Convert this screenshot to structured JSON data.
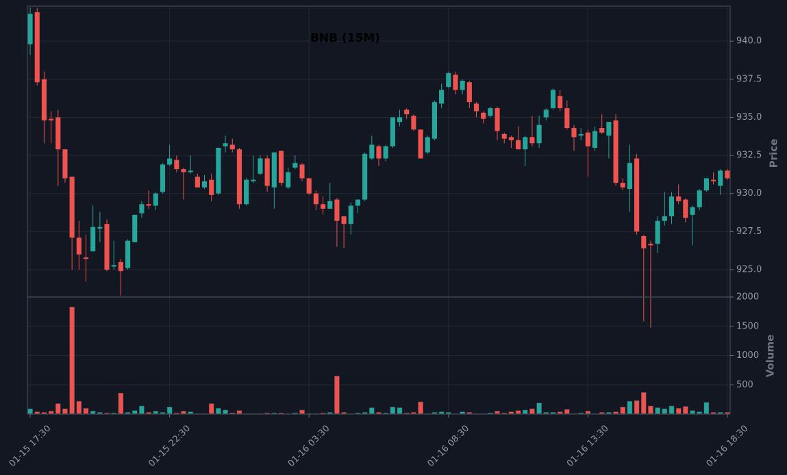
{
  "chart_data": {
    "type": "candlestick",
    "title": "BNB (15M)",
    "ylabel": "Price",
    "volume_label": "Volume",
    "up_color": "#26a69a",
    "down_color": "#ef5350",
    "grid": true,
    "xlim": [
      -0.4,
      100.4
    ],
    "xticks": [
      {
        "value": 0,
        "label": "01-15 17:30"
      },
      {
        "value": 20,
        "label": "01-15 22:30"
      },
      {
        "value": 40,
        "label": "01-16 03:30"
      },
      {
        "value": 60,
        "label": "01-16 08:30"
      },
      {
        "value": 80,
        "label": "01-16 13:30"
      },
      {
        "value": 100,
        "label": "01-16 18:30"
      }
    ],
    "ylim": [
      923.2,
      942.3
    ],
    "yticks": [
      {
        "value": 925,
        "label": "925.0"
      },
      927.5,
      {
        "value": 930,
        "label": "930.0"
      },
      932.5,
      {
        "value": 935,
        "label": "935.0"
      },
      937.5,
      {
        "value": 940,
        "label": "940.0"
      }
    ],
    "volume_ylim": [
      0,
      2000
    ],
    "volume_yticks": [
      500,
      1000,
      1500,
      2000
    ],
    "open": [
      939.8,
      941.9,
      937.5,
      934.9,
      935.0,
      932.9,
      931.1,
      927.1,
      925.8,
      926.2,
      927.7,
      928.0,
      925.2,
      925.5,
      925.1,
      926.8,
      928.7,
      929.3,
      929.2,
      930.1,
      931.9,
      932.2,
      931.6,
      931.4,
      931.1,
      930.4,
      930.9,
      930.0,
      933.1,
      933.2,
      932.9,
      929.3,
      930.8,
      931.3,
      932.3,
      930.4,
      932.8,
      930.4,
      931.7,
      931.9,
      931.0,
      930.0,
      929.3,
      929.0,
      929.6,
      928.5,
      928.0,
      929.2,
      929.6,
      932.3,
      933.1,
      932.3,
      933.1,
      934.7,
      935.5,
      935.1,
      934.2,
      932.7,
      933.6,
      935.9,
      937.0,
      937.8,
      936.8,
      937.3,
      935.9,
      935.3,
      935.1,
      935.6,
      933.9,
      933.7,
      933.5,
      932.9,
      933.7,
      933.3,
      935.0,
      935.6,
      936.4,
      935.6,
      934.3,
      933.8,
      934.0,
      933.0,
      934.3,
      933.8,
      934.8,
      930.7,
      930.3,
      932.3,
      927.2,
      926.7,
      926.7,
      928.2,
      928.5,
      929.8,
      929.6,
      928.6,
      929.1,
      930.2,
      930.9,
      930.5,
      931.5
    ],
    "high": [
      942.2,
      942.2,
      938.0,
      935.4,
      935.5,
      932.9,
      931.1,
      928.2,
      927.3,
      929.2,
      928.8,
      928.3,
      926.9,
      925.7,
      927.0,
      928.6,
      929.5,
      930.2,
      930.1,
      932.0,
      933.2,
      932.5,
      931.7,
      932.5,
      931.3,
      931.2,
      931.3,
      933.0,
      933.8,
      933.6,
      933.0,
      931.0,
      932.5,
      932.5,
      932.5,
      932.7,
      932.8,
      931.7,
      932.5,
      932.0,
      931.0,
      930.2,
      929.8,
      930.7,
      929.7,
      928.5,
      929.4,
      929.6,
      932.7,
      933.8,
      933.2,
      933.2,
      935.0,
      935.5,
      935.6,
      935.2,
      934.2,
      933.8,
      936.1,
      937.2,
      938.0,
      938.0,
      937.5,
      937.4,
      936.0,
      935.4,
      935.7,
      935.7,
      934.0,
      933.8,
      934.4,
      933.8,
      935.1,
      935.1,
      935.6,
      936.9,
      936.8,
      936.1,
      934.5,
      934.3,
      934.2,
      934.4,
      935.2,
      934.7,
      935.2,
      931.0,
      933.2,
      932.6,
      927.3,
      926.9,
      928.5,
      930.1,
      930.1,
      930.6,
      929.7,
      929.2,
      930.3,
      931.0,
      931.4,
      931.6,
      931.6
    ],
    "low": [
      939.1,
      937.1,
      933.3,
      933.3,
      930.5,
      930.7,
      925.0,
      925.0,
      924.2,
      926.2,
      926.8,
      924.9,
      925.0,
      923.3,
      925.0,
      926.8,
      928.4,
      929.0,
      928.9,
      930.0,
      931.8,
      931.4,
      929.6,
      931.3,
      930.4,
      930.3,
      929.5,
      929.9,
      932.7,
      932.7,
      929.0,
      929.2,
      930.7,
      931.2,
      930.1,
      929.0,
      930.5,
      930.3,
      931.6,
      930.8,
      929.9,
      928.9,
      928.6,
      929.0,
      926.5,
      926.4,
      927.3,
      928.7,
      929.5,
      932.2,
      931.8,
      932.1,
      933.0,
      934.4,
      934.9,
      934.1,
      932.3,
      932.6,
      933.5,
      935.6,
      936.9,
      936.5,
      936.5,
      935.6,
      935.0,
      934.6,
      935.0,
      933.5,
      933.3,
      933.0,
      932.9,
      931.8,
      933.1,
      933.0,
      934.8,
      935.5,
      935.4,
      934.2,
      932.8,
      933.5,
      931.1,
      932.8,
      933.9,
      932.3,
      930.5,
      930.2,
      928.8,
      927.3,
      921.6,
      921.2,
      926.1,
      927.9,
      928.0,
      929.3,
      928.1,
      926.6,
      928.9,
      930.1,
      930.6,
      929.9,
      930.9
    ],
    "close": [
      941.8,
      937.3,
      934.8,
      934.8,
      932.9,
      931.0,
      927.1,
      926.0,
      925.7,
      927.8,
      927.8,
      925.0,
      925.3,
      924.9,
      926.9,
      928.6,
      929.3,
      929.2,
      930.0,
      931.9,
      932.3,
      931.6,
      931.4,
      931.5,
      930.4,
      930.8,
      929.9,
      933.0,
      933.3,
      932.9,
      929.3,
      930.9,
      930.9,
      932.3,
      930.5,
      932.7,
      930.7,
      931.4,
      932.0,
      931.0,
      930.0,
      929.3,
      929.0,
      929.5,
      928.2,
      928.0,
      929.2,
      929.6,
      932.6,
      933.2,
      932.3,
      933.1,
      935.0,
      935.0,
      935.2,
      934.2,
      932.3,
      933.7,
      936.0,
      936.8,
      937.9,
      936.8,
      937.4,
      936.0,
      935.4,
      934.9,
      935.6,
      934.1,
      933.6,
      933.5,
      932.9,
      933.7,
      933.3,
      934.5,
      935.5,
      936.8,
      935.6,
      934.3,
      933.7,
      933.9,
      933.1,
      934.1,
      934.0,
      934.7,
      930.7,
      930.4,
      932.0,
      927.5,
      926.4,
      926.6,
      928.2,
      928.5,
      929.8,
      929.5,
      928.4,
      929.1,
      930.2,
      931.0,
      930.8,
      931.5,
      931.0
    ],
    "volume": [
      90,
      40,
      30,
      50,
      180,
      90,
      1830,
      220,
      100,
      50,
      30,
      20,
      20,
      360,
      30,
      60,
      140,
      30,
      50,
      30,
      120,
      20,
      50,
      40,
      10,
      10,
      180,
      100,
      70,
      20,
      60,
      10,
      10,
      10,
      20,
      20,
      20,
      10,
      20,
      70,
      10,
      10,
      20,
      30,
      650,
      30,
      10,
      20,
      30,
      110,
      30,
      20,
      120,
      110,
      20,
      30,
      210,
      10,
      30,
      40,
      30,
      10,
      40,
      30,
      10,
      10,
      20,
      50,
      20,
      40,
      60,
      70,
      90,
      190,
      30,
      30,
      40,
      80,
      10,
      20,
      50,
      10,
      30,
      30,
      40,
      120,
      220,
      230,
      370,
      140,
      110,
      90,
      140,
      100,
      130,
      60,
      40,
      200,
      30,
      30,
      30
    ]
  }
}
